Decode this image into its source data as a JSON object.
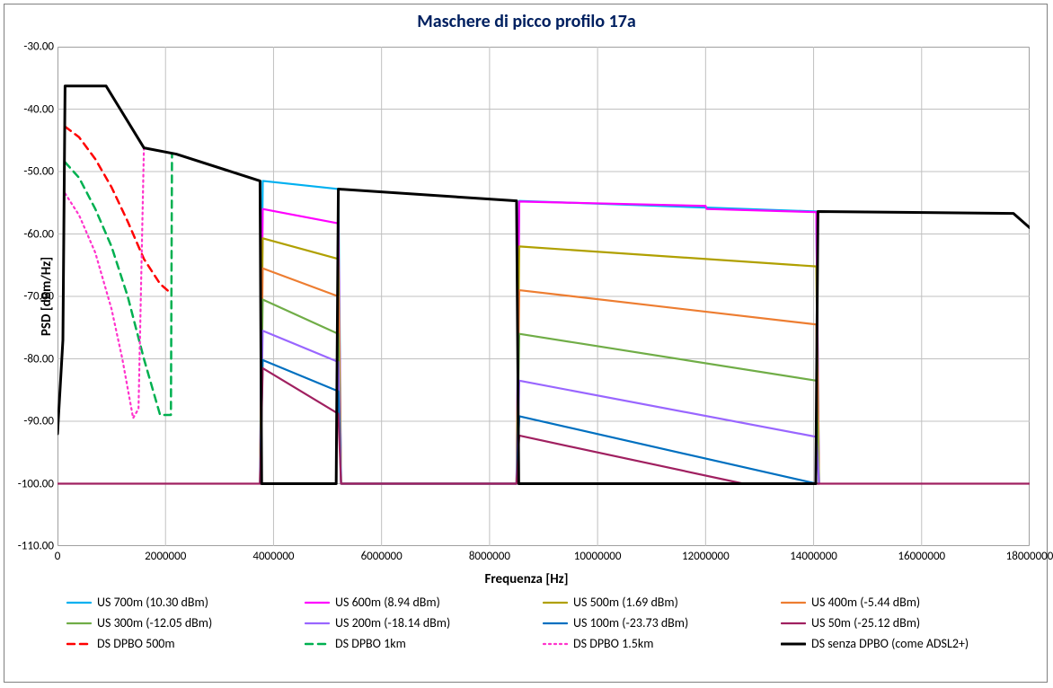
{
  "chart": {
    "type": "line",
    "title": "Maschere di picco profilo 17a",
    "title_color": "#002060",
    "title_fontsize": 20,
    "xlabel": "Frequenza [Hz]",
    "ylabel": "PSD [dBm/Hz]",
    "label_fontsize": 15,
    "tick_fontsize": 13,
    "background_color": "#ffffff",
    "grid_color": "#c0c0c0",
    "border_color": "#808080",
    "xlim": [
      0,
      18000000
    ],
    "ylim": [
      -110,
      -30
    ],
    "xticks": [
      0,
      2000000,
      4000000,
      6000000,
      8000000,
      10000000,
      12000000,
      14000000,
      16000000,
      18000000
    ],
    "yticks": [
      -30,
      -40,
      -50,
      -60,
      -70,
      -80,
      -90,
      -100,
      -110
    ],
    "xtick_labels": [
      "0",
      "2000000",
      "4000000",
      "6000000",
      "8000000",
      "10000000",
      "12000000",
      "14000000",
      "16000000",
      "18000000"
    ],
    "ytick_labels": [
      "-30.00",
      "-40.00",
      "-50.00",
      "-60.00",
      "-70.00",
      "-80.00",
      "-90.00",
      "-100.00",
      "-110.00"
    ],
    "series": [
      {
        "name": "US 700m (10.30 dBm)",
        "color": "#00b0f0",
        "width": 2.2,
        "dash": "none",
        "points": [
          [
            3750000,
            -100
          ],
          [
            3800000,
            -51.5
          ],
          [
            5200000,
            -52.8
          ],
          [
            5250000,
            -100
          ],
          [
            8500000,
            -100
          ],
          [
            8550000,
            -54.7
          ],
          [
            14050000,
            -56.4
          ],
          [
            14100000,
            -100
          ]
        ]
      },
      {
        "name": "US 600m (8.94 dBm)",
        "color": "#ff00ff",
        "width": 2.2,
        "dash": "none",
        "points": [
          [
            3750000,
            -100
          ],
          [
            3800000,
            -56.0
          ],
          [
            5200000,
            -58.3
          ],
          [
            5250000,
            -100
          ],
          [
            8500000,
            -100
          ],
          [
            8550000,
            -54.8
          ],
          [
            12000000,
            -55.5
          ],
          [
            12020000,
            -56.0
          ],
          [
            14050000,
            -56.5
          ],
          [
            14100000,
            -100
          ]
        ]
      },
      {
        "name": "US 500m (1.69 dBm)",
        "color": "#b0a000",
        "width": 2.2,
        "dash": "none",
        "points": [
          [
            3750000,
            -100
          ],
          [
            3800000,
            -60.7
          ],
          [
            5200000,
            -64.0
          ],
          [
            5250000,
            -100
          ],
          [
            8500000,
            -100
          ],
          [
            8550000,
            -62.0
          ],
          [
            14050000,
            -65.2
          ],
          [
            14100000,
            -100
          ]
        ]
      },
      {
        "name": "US 400m (-5.44 dBm)",
        "color": "#ed7d31",
        "width": 2.2,
        "dash": "none",
        "points": [
          [
            3750000,
            -100
          ],
          [
            3800000,
            -65.5
          ],
          [
            5200000,
            -70.0
          ],
          [
            5250000,
            -100
          ],
          [
            8500000,
            -100
          ],
          [
            8550000,
            -69.0
          ],
          [
            14050000,
            -74.5
          ],
          [
            14100000,
            -100
          ]
        ]
      },
      {
        "name": "US 300m (-12.05 dBm)",
        "color": "#70ad47",
        "width": 2.2,
        "dash": "none",
        "points": [
          [
            3750000,
            -100
          ],
          [
            3800000,
            -70.5
          ],
          [
            5200000,
            -76.0
          ],
          [
            5250000,
            -100
          ],
          [
            8500000,
            -100
          ],
          [
            8550000,
            -76.0
          ],
          [
            14050000,
            -83.5
          ],
          [
            14100000,
            -100
          ]
        ]
      },
      {
        "name": "US 200m (-18.14 dBm)",
        "color": "#9966ff",
        "width": 2.2,
        "dash": "none",
        "points": [
          [
            3750000,
            -100
          ],
          [
            3800000,
            -75.5
          ],
          [
            5200000,
            -80.5
          ],
          [
            5250000,
            -100
          ],
          [
            8500000,
            -100
          ],
          [
            8550000,
            -83.5
          ],
          [
            14050000,
            -92.5
          ],
          [
            14100000,
            -100
          ]
        ]
      },
      {
        "name": "US 100m (-23.73 dBm)",
        "color": "#0070c0",
        "width": 2.2,
        "dash": "none",
        "points": [
          [
            3750000,
            -100
          ],
          [
            3800000,
            -80.2
          ],
          [
            5200000,
            -85.2
          ],
          [
            5250000,
            -100
          ],
          [
            8500000,
            -100
          ],
          [
            8550000,
            -89.2
          ],
          [
            14050000,
            -100
          ],
          [
            14100000,
            -100
          ]
        ]
      },
      {
        "name": "US 50m (-25.12 dBm)",
        "color": "#a02060",
        "width": 2.2,
        "dash": "none",
        "points": [
          [
            0,
            -100
          ],
          [
            3750000,
            -100
          ],
          [
            3800000,
            -81.5
          ],
          [
            5200000,
            -88.8
          ],
          [
            5250000,
            -100
          ],
          [
            8500000,
            -100
          ],
          [
            8550000,
            -92.3
          ],
          [
            12700000,
            -100
          ],
          [
            14050000,
            -100
          ],
          [
            14100000,
            -100
          ],
          [
            18000000,
            -100
          ]
        ]
      },
      {
        "name": "DS DPBO 500m",
        "color": "#ff0000",
        "width": 2.5,
        "dash": "8 6",
        "points": [
          [
            140000,
            -42.8
          ],
          [
            400000,
            -44.5
          ],
          [
            700000,
            -48.0
          ],
          [
            1000000,
            -52.5
          ],
          [
            1300000,
            -58.0
          ],
          [
            1600000,
            -64.0
          ],
          [
            1900000,
            -68.0
          ],
          [
            2100000,
            -69.5
          ]
        ]
      },
      {
        "name": "DS DPBO 1km",
        "color": "#00b050",
        "width": 2.5,
        "dash": "8 6",
        "points": [
          [
            140000,
            -48.5
          ],
          [
            400000,
            -51.0
          ],
          [
            700000,
            -56.0
          ],
          [
            1000000,
            -62.0
          ],
          [
            1300000,
            -70.0
          ],
          [
            1600000,
            -80.0
          ],
          [
            1900000,
            -89.0
          ],
          [
            2100000,
            -89.0
          ],
          [
            2120000,
            -47.2
          ]
        ]
      },
      {
        "name": "DS DPBO 1.5km",
        "color": "#ff33cc",
        "width": 2.2,
        "dash": "2 4",
        "points": [
          [
            140000,
            -53.5
          ],
          [
            400000,
            -57.0
          ],
          [
            700000,
            -63.0
          ],
          [
            1000000,
            -72.0
          ],
          [
            1200000,
            -80.0
          ],
          [
            1400000,
            -89.5
          ],
          [
            1500000,
            -88.0
          ],
          [
            1600000,
            -46.2
          ]
        ]
      },
      {
        "name": "DS senza DPBO (come ADSL2+)",
        "color": "#000000",
        "width": 3.0,
        "dash": "none",
        "points": [
          [
            0,
            -92.0
          ],
          [
            100000,
            -77.0
          ],
          [
            140000,
            -36.3
          ],
          [
            900000,
            -36.3
          ],
          [
            1600000,
            -46.2
          ],
          [
            2200000,
            -47.2
          ],
          [
            3750000,
            -51.5
          ],
          [
            3780000,
            -100
          ],
          [
            5160000,
            -100
          ],
          [
            5200000,
            -52.8
          ],
          [
            8500000,
            -54.7
          ],
          [
            8540000,
            -100
          ],
          [
            14040000,
            -100
          ],
          [
            14080000,
            -56.4
          ],
          [
            17700000,
            -56.7
          ],
          [
            18000000,
            -59.0
          ]
        ]
      }
    ],
    "legend": {
      "rows": [
        [
          0,
          1,
          2,
          3
        ],
        [
          4,
          5,
          6,
          7
        ],
        [
          8,
          9,
          10,
          11
        ]
      ]
    }
  }
}
